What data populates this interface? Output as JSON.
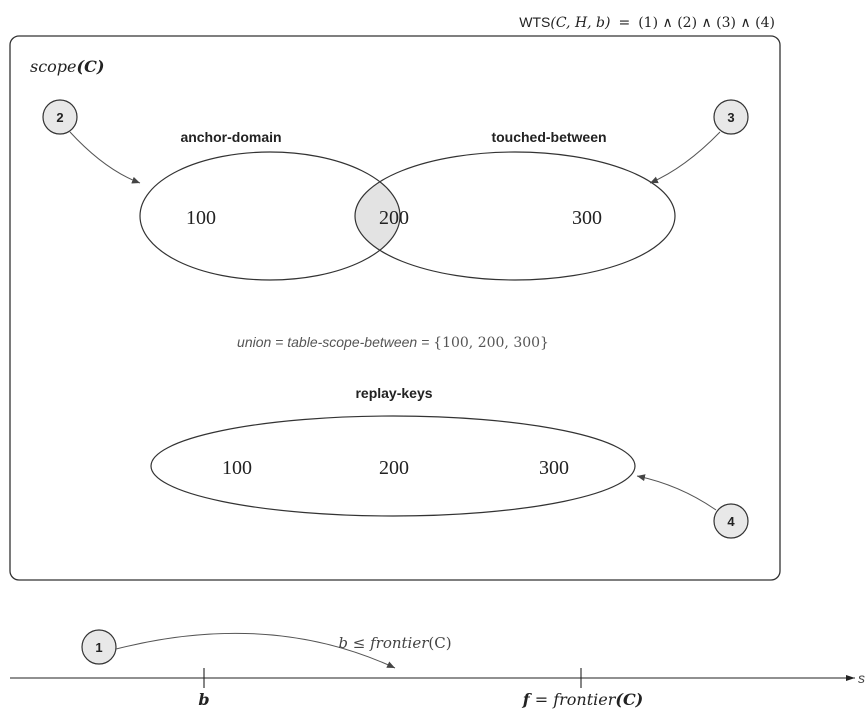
{
  "formula": {
    "lhs_prefix": "WTS",
    "args": "(C, H, b)",
    "eq": "=",
    "rhs": "(1) ∧ (2) ∧ (3) ∧ (4)"
  },
  "scope_box": {
    "label_main": "scope",
    "label_arg": "(C)"
  },
  "sets": {
    "anchor_domain": {
      "label": "anchor-domain",
      "value": "100"
    },
    "intersection": {
      "value": "200"
    },
    "touched_between": {
      "label": "touched-between",
      "value": "300"
    },
    "replay_keys": {
      "label": "replay-keys",
      "values": [
        "100",
        "200",
        "300"
      ]
    }
  },
  "union_text": {
    "prefix": "union = table-scope-between = ",
    "set": "{100, 200, 300}"
  },
  "badges": [
    "1",
    "2",
    "3",
    "4"
  ],
  "timeline": {
    "arrow_label_var": "b",
    "arrow_label_op": " ≤ ",
    "arrow_label_fn": "frontier",
    "arrow_label_arg": "(C)",
    "tick_b": "b",
    "tick_f_lhs": "f",
    "tick_f_eq": " = ",
    "tick_f_fn": "frontier",
    "tick_f_arg": "(C)",
    "axis_label": "source-log"
  },
  "colors": {
    "stroke": "#333333",
    "highlight_fill": "#e3e3e3",
    "badge_fill": "#e8e8e8",
    "arrow_gray": "#666666"
  }
}
